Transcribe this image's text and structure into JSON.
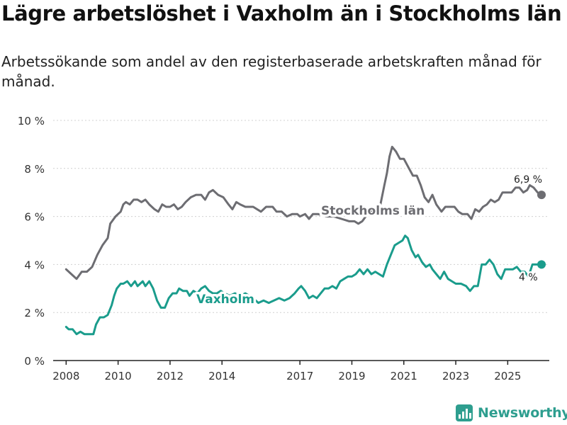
{
  "header": {
    "title": "Lägre arbetslöshet i Vaxholm än i Stockholms län",
    "subtitle": "Arbetssökande som andel av den registerbaserade arbetskraften månad för månad."
  },
  "brand": {
    "name": "Newsworthy"
  },
  "colors": {
    "stockholm": "#6d6d72",
    "vaxholm": "#1a9c8c",
    "grid": "#d0d0d0",
    "axis": "#222222"
  },
  "chart_data": {
    "type": "line",
    "xlim": [
      2007.5,
      2026.6
    ],
    "ylim": [
      0,
      10
    ],
    "yticks": [
      {
        "value": 0,
        "label": "0 %"
      },
      {
        "value": 2,
        "label": "2 %"
      },
      {
        "value": 4,
        "label": "4 %"
      },
      {
        "value": 6,
        "label": "6 %"
      },
      {
        "value": 8,
        "label": "8 %"
      },
      {
        "value": 10,
        "label": "10 %"
      }
    ],
    "xticks": [
      {
        "value": 2008,
        "label": "2008"
      },
      {
        "value": 2010,
        "label": "2010"
      },
      {
        "value": 2012,
        "label": "2012"
      },
      {
        "value": 2014,
        "label": "2014"
      },
      {
        "value": 2017,
        "label": "2017"
      },
      {
        "value": 2019,
        "label": "2019"
      },
      {
        "value": 2021,
        "label": "2021"
      },
      {
        "value": 2023,
        "label": "2023"
      },
      {
        "value": 2025,
        "label": "2025"
      }
    ],
    "series": [
      {
        "name": "Stockholms län",
        "label": "Stockholms län",
        "end_label": "6,9 %",
        "points": [
          [
            2008.0,
            3.8
          ],
          [
            2008.2,
            3.6
          ],
          [
            2008.4,
            3.4
          ],
          [
            2008.6,
            3.7
          ],
          [
            2008.8,
            3.7
          ],
          [
            2009.0,
            3.9
          ],
          [
            2009.2,
            4.4
          ],
          [
            2009.4,
            4.8
          ],
          [
            2009.6,
            5.1
          ],
          [
            2009.7,
            5.7
          ],
          [
            2009.9,
            6.0
          ],
          [
            2010.0,
            6.1
          ],
          [
            2010.1,
            6.2
          ],
          [
            2010.2,
            6.5
          ],
          [
            2010.3,
            6.6
          ],
          [
            2010.45,
            6.5
          ],
          [
            2010.6,
            6.7
          ],
          [
            2010.75,
            6.7
          ],
          [
            2010.9,
            6.6
          ],
          [
            2011.05,
            6.7
          ],
          [
            2011.2,
            6.5
          ],
          [
            2011.4,
            6.3
          ],
          [
            2011.55,
            6.2
          ],
          [
            2011.7,
            6.5
          ],
          [
            2011.85,
            6.4
          ],
          [
            2012.0,
            6.4
          ],
          [
            2012.15,
            6.5
          ],
          [
            2012.3,
            6.3
          ],
          [
            2012.45,
            6.4
          ],
          [
            2012.6,
            6.6
          ],
          [
            2012.8,
            6.8
          ],
          [
            2013.0,
            6.9
          ],
          [
            2013.2,
            6.9
          ],
          [
            2013.35,
            6.7
          ],
          [
            2013.5,
            7.0
          ],
          [
            2013.65,
            7.1
          ],
          [
            2013.85,
            6.9
          ],
          [
            2014.05,
            6.8
          ],
          [
            2014.25,
            6.5
          ],
          [
            2014.4,
            6.3
          ],
          [
            2014.55,
            6.6
          ],
          [
            2014.7,
            6.5
          ],
          [
            2014.9,
            6.4
          ],
          [
            2015.2,
            6.4
          ],
          [
            2015.5,
            6.2
          ],
          [
            2015.7,
            6.4
          ],
          [
            2015.95,
            6.4
          ],
          [
            2016.1,
            6.2
          ],
          [
            2016.3,
            6.2
          ],
          [
            2016.5,
            6.0
          ],
          [
            2016.7,
            6.1
          ],
          [
            2016.9,
            6.1
          ],
          [
            2017.0,
            6.0
          ],
          [
            2017.2,
            6.1
          ],
          [
            2017.35,
            5.9
          ],
          [
            2017.5,
            6.1
          ],
          [
            2017.7,
            6.1
          ],
          [
            2018.0,
            6.0
          ],
          [
            2018.3,
            6.0
          ],
          [
            2018.6,
            5.9
          ],
          [
            2018.9,
            5.8
          ],
          [
            2019.1,
            5.8
          ],
          [
            2019.25,
            5.7
          ],
          [
            2019.4,
            5.8
          ],
          [
            2019.6,
            6.1
          ],
          [
            2019.8,
            6.3
          ],
          [
            2019.95,
            6.4
          ],
          [
            2020.1,
            6.5
          ],
          [
            2020.25,
            7.3
          ],
          [
            2020.35,
            7.8
          ],
          [
            2020.45,
            8.5
          ],
          [
            2020.55,
            8.9
          ],
          [
            2020.7,
            8.7
          ],
          [
            2020.85,
            8.4
          ],
          [
            2021.0,
            8.4
          ],
          [
            2021.2,
            8.0
          ],
          [
            2021.35,
            7.7
          ],
          [
            2021.5,
            7.7
          ],
          [
            2021.65,
            7.3
          ],
          [
            2021.8,
            6.8
          ],
          [
            2021.95,
            6.6
          ],
          [
            2022.1,
            6.9
          ],
          [
            2022.25,
            6.5
          ],
          [
            2022.45,
            6.2
          ],
          [
            2022.6,
            6.4
          ],
          [
            2022.8,
            6.4
          ],
          [
            2022.95,
            6.4
          ],
          [
            2023.1,
            6.2
          ],
          [
            2023.25,
            6.1
          ],
          [
            2023.45,
            6.1
          ],
          [
            2023.6,
            5.9
          ],
          [
            2023.75,
            6.3
          ],
          [
            2023.9,
            6.2
          ],
          [
            2024.05,
            6.4
          ],
          [
            2024.2,
            6.5
          ],
          [
            2024.35,
            6.7
          ],
          [
            2024.5,
            6.6
          ],
          [
            2024.65,
            6.7
          ],
          [
            2024.8,
            7.0
          ],
          [
            2025.0,
            7.0
          ],
          [
            2025.15,
            7.0
          ],
          [
            2025.3,
            7.2
          ],
          [
            2025.45,
            7.2
          ],
          [
            2025.6,
            7.0
          ],
          [
            2025.75,
            7.1
          ],
          [
            2025.85,
            7.3
          ],
          [
            2026.0,
            7.2
          ],
          [
            2026.15,
            7.0
          ],
          [
            2026.3,
            6.9
          ]
        ]
      },
      {
        "name": "Vaxholm",
        "label": "Vaxholm",
        "end_label": "4 %",
        "points": [
          [
            2008.0,
            1.4
          ],
          [
            2008.1,
            1.3
          ],
          [
            2008.25,
            1.3
          ],
          [
            2008.4,
            1.1
          ],
          [
            2008.55,
            1.2
          ],
          [
            2008.7,
            1.1
          ],
          [
            2008.9,
            1.1
          ],
          [
            2009.05,
            1.1
          ],
          [
            2009.15,
            1.5
          ],
          [
            2009.3,
            1.8
          ],
          [
            2009.45,
            1.8
          ],
          [
            2009.6,
            1.9
          ],
          [
            2009.75,
            2.3
          ],
          [
            2009.85,
            2.7
          ],
          [
            2009.95,
            3.0
          ],
          [
            2010.1,
            3.2
          ],
          [
            2010.2,
            3.2
          ],
          [
            2010.35,
            3.3
          ],
          [
            2010.5,
            3.1
          ],
          [
            2010.65,
            3.3
          ],
          [
            2010.75,
            3.1
          ],
          [
            2010.85,
            3.2
          ],
          [
            2010.95,
            3.3
          ],
          [
            2011.05,
            3.1
          ],
          [
            2011.2,
            3.3
          ],
          [
            2011.35,
            3.0
          ],
          [
            2011.5,
            2.5
          ],
          [
            2011.65,
            2.2
          ],
          [
            2011.8,
            2.2
          ],
          [
            2011.95,
            2.6
          ],
          [
            2012.1,
            2.8
          ],
          [
            2012.25,
            2.8
          ],
          [
            2012.35,
            3.0
          ],
          [
            2012.5,
            2.9
          ],
          [
            2012.65,
            2.9
          ],
          [
            2012.75,
            2.7
          ],
          [
            2012.9,
            2.9
          ],
          [
            2013.05,
            2.8
          ],
          [
            2013.2,
            3.0
          ],
          [
            2013.35,
            3.1
          ],
          [
            2013.5,
            2.9
          ],
          [
            2013.65,
            2.8
          ],
          [
            2013.8,
            2.8
          ],
          [
            2013.95,
            2.9
          ],
          [
            2014.1,
            2.8
          ],
          [
            2014.3,
            2.7
          ],
          [
            2014.5,
            2.8
          ],
          [
            2014.7,
            2.7
          ],
          [
            2014.9,
            2.8
          ],
          [
            2015.05,
            2.7
          ],
          [
            2015.2,
            2.6
          ],
          [
            2015.4,
            2.4
          ],
          [
            2015.6,
            2.5
          ],
          [
            2015.8,
            2.4
          ],
          [
            2016.0,
            2.5
          ],
          [
            2016.2,
            2.6
          ],
          [
            2016.4,
            2.5
          ],
          [
            2016.6,
            2.6
          ],
          [
            2016.8,
            2.8
          ],
          [
            2016.95,
            3.0
          ],
          [
            2017.05,
            3.1
          ],
          [
            2017.2,
            2.9
          ],
          [
            2017.35,
            2.6
          ],
          [
            2017.5,
            2.7
          ],
          [
            2017.65,
            2.6
          ],
          [
            2017.8,
            2.8
          ],
          [
            2017.95,
            3.0
          ],
          [
            2018.1,
            3.0
          ],
          [
            2018.25,
            3.1
          ],
          [
            2018.4,
            3.0
          ],
          [
            2018.55,
            3.3
          ],
          [
            2018.7,
            3.4
          ],
          [
            2018.85,
            3.5
          ],
          [
            2019.0,
            3.5
          ],
          [
            2019.15,
            3.6
          ],
          [
            2019.3,
            3.8
          ],
          [
            2019.45,
            3.6
          ],
          [
            2019.6,
            3.8
          ],
          [
            2019.75,
            3.6
          ],
          [
            2019.9,
            3.7
          ],
          [
            2020.05,
            3.6
          ],
          [
            2020.2,
            3.5
          ],
          [
            2020.35,
            4.0
          ],
          [
            2020.5,
            4.4
          ],
          [
            2020.65,
            4.8
          ],
          [
            2020.8,
            4.9
          ],
          [
            2020.95,
            5.0
          ],
          [
            2021.05,
            5.2
          ],
          [
            2021.15,
            5.1
          ],
          [
            2021.3,
            4.6
          ],
          [
            2021.45,
            4.3
          ],
          [
            2021.55,
            4.4
          ],
          [
            2021.7,
            4.1
          ],
          [
            2021.85,
            3.9
          ],
          [
            2022.0,
            4.0
          ],
          [
            2022.1,
            3.8
          ],
          [
            2022.25,
            3.6
          ],
          [
            2022.4,
            3.4
          ],
          [
            2022.55,
            3.7
          ],
          [
            2022.7,
            3.4
          ],
          [
            2022.85,
            3.3
          ],
          [
            2023.0,
            3.2
          ],
          [
            2023.2,
            3.2
          ],
          [
            2023.4,
            3.1
          ],
          [
            2023.55,
            2.9
          ],
          [
            2023.7,
            3.1
          ],
          [
            2023.85,
            3.1
          ],
          [
            2024.0,
            4.0
          ],
          [
            2024.15,
            4.0
          ],
          [
            2024.3,
            4.2
          ],
          [
            2024.45,
            4.0
          ],
          [
            2024.6,
            3.6
          ],
          [
            2024.75,
            3.4
          ],
          [
            2024.9,
            3.8
          ],
          [
            2025.05,
            3.8
          ],
          [
            2025.2,
            3.8
          ],
          [
            2025.35,
            3.9
          ],
          [
            2025.5,
            3.7
          ],
          [
            2025.65,
            3.7
          ],
          [
            2025.8,
            3.5
          ],
          [
            2025.95,
            4.0
          ],
          [
            2026.1,
            4.0
          ],
          [
            2026.3,
            4.0
          ]
        ]
      }
    ]
  }
}
